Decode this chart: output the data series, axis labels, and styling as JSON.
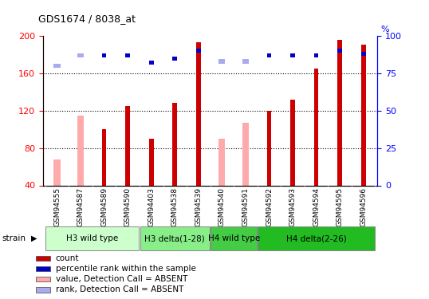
{
  "title": "GDS1674 / 8038_at",
  "samples": [
    "GSM94555",
    "GSM94587",
    "GSM94589",
    "GSM94590",
    "GSM94403",
    "GSM94538",
    "GSM94539",
    "GSM94540",
    "GSM94591",
    "GSM94592",
    "GSM94593",
    "GSM94594",
    "GSM94595",
    "GSM94596"
  ],
  "red_values": [
    0,
    0,
    100,
    125,
    90,
    128,
    193,
    0,
    0,
    120,
    132,
    165,
    196,
    191
  ],
  "pink_values": [
    68,
    115,
    0,
    0,
    0,
    0,
    0,
    90,
    107,
    0,
    0,
    0,
    0,
    0
  ],
  "blue_values": [
    0,
    0,
    87,
    87,
    82,
    85,
    90,
    0,
    0,
    87,
    87,
    87,
    90,
    88
  ],
  "lblue_values": [
    80,
    87,
    0,
    0,
    0,
    0,
    0,
    83,
    83,
    0,
    0,
    0,
    0,
    0
  ],
  "groups": [
    {
      "label": "H3 wild type",
      "start": 0,
      "end": 3,
      "color": "#ccffcc"
    },
    {
      "label": "H3 delta(1-28)",
      "start": 4,
      "end": 6,
      "color": "#88ee88"
    },
    {
      "label": "H4 wild type",
      "start": 7,
      "end": 8,
      "color": "#44cc44"
    },
    {
      "label": "H4 delta(2-26)",
      "start": 9,
      "end": 13,
      "color": "#22bb22"
    }
  ],
  "ylim_left": [
    40,
    200
  ],
  "ylim_right": [
    0,
    100
  ],
  "yticks_left": [
    40,
    80,
    120,
    160,
    200
  ],
  "yticks_right": [
    0,
    25,
    50,
    75,
    100
  ],
  "bar_width": 0.5,
  "red_color": "#cc0000",
  "pink_color": "#ffaaaa",
  "blue_color": "#0000cc",
  "lblue_color": "#aaaaee",
  "bg_color": "#ffffff",
  "plot_bg": "#ffffff",
  "grid_lines": [
    80,
    120,
    160
  ],
  "legend_items": [
    {
      "label": "count",
      "color": "#cc0000"
    },
    {
      "label": "percentile rank within the sample",
      "color": "#0000cc"
    },
    {
      "label": "value, Detection Call = ABSENT",
      "color": "#ffaaaa"
    },
    {
      "label": "rank, Detection Call = ABSENT",
      "color": "#aaaaee"
    }
  ]
}
